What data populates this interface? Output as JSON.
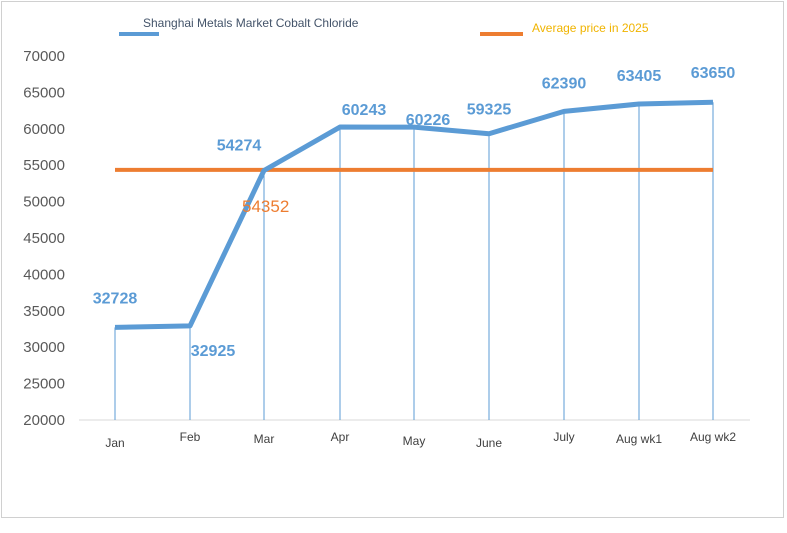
{
  "chart_data": {
    "type": "line",
    "categories": [
      "Jan",
      "Feb",
      "Mar",
      "Apr",
      "May",
      "June",
      "July",
      "Aug wk1",
      "Aug wk2"
    ],
    "series": [
      {
        "name": "Shanghai Metals Market Cobalt Chloride",
        "values": [
          32728,
          32925,
          54274,
          60243,
          60226,
          59325,
          62390,
          63405,
          63650
        ],
        "color": "#5b9bd5"
      },
      {
        "name": "Average price in 2025",
        "values": [
          54352,
          54352,
          54352,
          54352,
          54352,
          54352,
          54352,
          54352,
          54352
        ],
        "color": "#ed7d31"
      }
    ],
    "average_label": "54352",
    "data_labels": [
      "32728",
      "32925",
      "54274",
      "60243",
      "60226",
      "59325",
      "62390",
      "63405",
      "63650"
    ],
    "y_ticks": [
      "20000",
      "25000",
      "30000",
      "35000",
      "40000",
      "45000",
      "50000",
      "55000",
      "60000",
      "65000",
      "70000"
    ],
    "ylim": [
      20000,
      70000
    ],
    "legend_position": "top",
    "drop_lines": true,
    "grid": false,
    "legend_text_color": "#f0b400",
    "legend_series_text_color": "#44546a"
  }
}
